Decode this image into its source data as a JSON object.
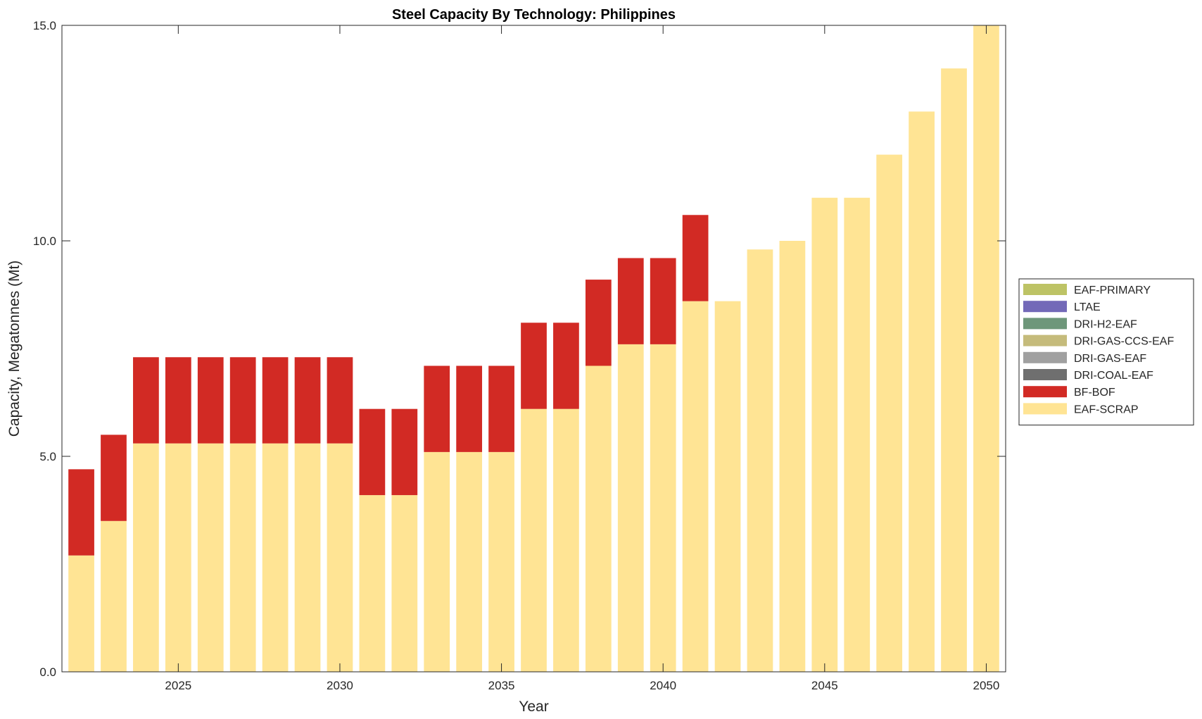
{
  "chart_data": {
    "type": "bar",
    "stacked": true,
    "title": "Steel Capacity By Technology: Philippines",
    "xlabel": "Year",
    "ylabel": "Capacity, Megatonnes (Mt)",
    "ylim": [
      0,
      15
    ],
    "xlim": [
      2021.4,
      2050.6
    ],
    "yticks": [
      0,
      5,
      10,
      15
    ],
    "ytick_labels": [
      "0.0",
      "5.0",
      "10.0",
      "15.0"
    ],
    "xticks": [
      2025,
      2030,
      2035,
      2040,
      2045,
      2050
    ],
    "xtick_labels": [
      "2025",
      "2030",
      "2035",
      "2040",
      "2045",
      "2050"
    ],
    "legend_position": "right",
    "categories": [
      2022,
      2023,
      2024,
      2025,
      2026,
      2027,
      2028,
      2029,
      2030,
      2031,
      2032,
      2033,
      2034,
      2035,
      2036,
      2037,
      2038,
      2039,
      2040,
      2041,
      2042,
      2043,
      2044,
      2045,
      2046,
      2047,
      2048,
      2049,
      2050
    ],
    "series": [
      {
        "name": "EAF-SCRAP",
        "color": "#ffe494",
        "values": [
          2.7,
          3.5,
          5.3,
          5.3,
          5.3,
          5.3,
          5.3,
          5.3,
          5.3,
          4.1,
          4.1,
          5.1,
          5.1,
          5.1,
          6.1,
          6.1,
          7.1,
          7.6,
          7.6,
          8.6,
          8.6,
          9.8,
          10.0,
          11.0,
          11.0,
          12.0,
          13.0,
          14.0,
          15.0
        ]
      },
      {
        "name": "BF-BOF",
        "color": "#d22a24",
        "values": [
          2.0,
          2.0,
          2.0,
          2.0,
          2.0,
          2.0,
          2.0,
          2.0,
          2.0,
          2.0,
          2.0,
          2.0,
          2.0,
          2.0,
          2.0,
          2.0,
          2.0,
          2.0,
          2.0,
          2.0,
          0,
          0,
          0,
          0,
          0,
          0,
          0,
          0,
          0
        ]
      },
      {
        "name": "DRI-COAL-EAF",
        "color": "#6f6f6f",
        "values": [
          0,
          0,
          0,
          0,
          0,
          0,
          0,
          0,
          0,
          0,
          0,
          0,
          0,
          0,
          0,
          0,
          0,
          0,
          0,
          0,
          0,
          0,
          0,
          0,
          0,
          0,
          0,
          0,
          0
        ]
      },
      {
        "name": "DRI-GAS-EAF",
        "color": "#a0a0a0",
        "values": [
          0,
          0,
          0,
          0,
          0,
          0,
          0,
          0,
          0,
          0,
          0,
          0,
          0,
          0,
          0,
          0,
          0,
          0,
          0,
          0,
          0,
          0,
          0,
          0,
          0,
          0,
          0,
          0,
          0
        ]
      },
      {
        "name": "DRI-GAS-CCS-EAF",
        "color": "#c5bb7b",
        "values": [
          0,
          0,
          0,
          0,
          0,
          0,
          0,
          0,
          0,
          0,
          0,
          0,
          0,
          0,
          0,
          0,
          0,
          0,
          0,
          0,
          0,
          0,
          0,
          0,
          0,
          0,
          0,
          0,
          0
        ]
      },
      {
        "name": "DRI-H2-EAF",
        "color": "#6e977a",
        "values": [
          0,
          0,
          0,
          0,
          0,
          0,
          0,
          0,
          0,
          0,
          0,
          0,
          0,
          0,
          0,
          0,
          0,
          0,
          0,
          0,
          0,
          0,
          0,
          0,
          0,
          0,
          0,
          0,
          0
        ]
      },
      {
        "name": "LTAE",
        "color": "#7369b8",
        "values": [
          0,
          0,
          0,
          0,
          0,
          0,
          0,
          0,
          0,
          0,
          0,
          0,
          0,
          0,
          0,
          0,
          0,
          0,
          0,
          0,
          0,
          0,
          0,
          0,
          0,
          0,
          0,
          0,
          0
        ]
      },
      {
        "name": "EAF-PRIMARY",
        "color": "#bdc365",
        "values": [
          0,
          0,
          0,
          0,
          0,
          0,
          0,
          0,
          0,
          0,
          0,
          0,
          0,
          0,
          0,
          0,
          0,
          0,
          0,
          0,
          0,
          0,
          0,
          0,
          0,
          0,
          0,
          0,
          0
        ]
      }
    ],
    "legend_order": [
      "EAF-PRIMARY",
      "LTAE",
      "DRI-H2-EAF",
      "DRI-GAS-CCS-EAF",
      "DRI-GAS-EAF",
      "DRI-COAL-EAF",
      "BF-BOF",
      "EAF-SCRAP"
    ]
  }
}
